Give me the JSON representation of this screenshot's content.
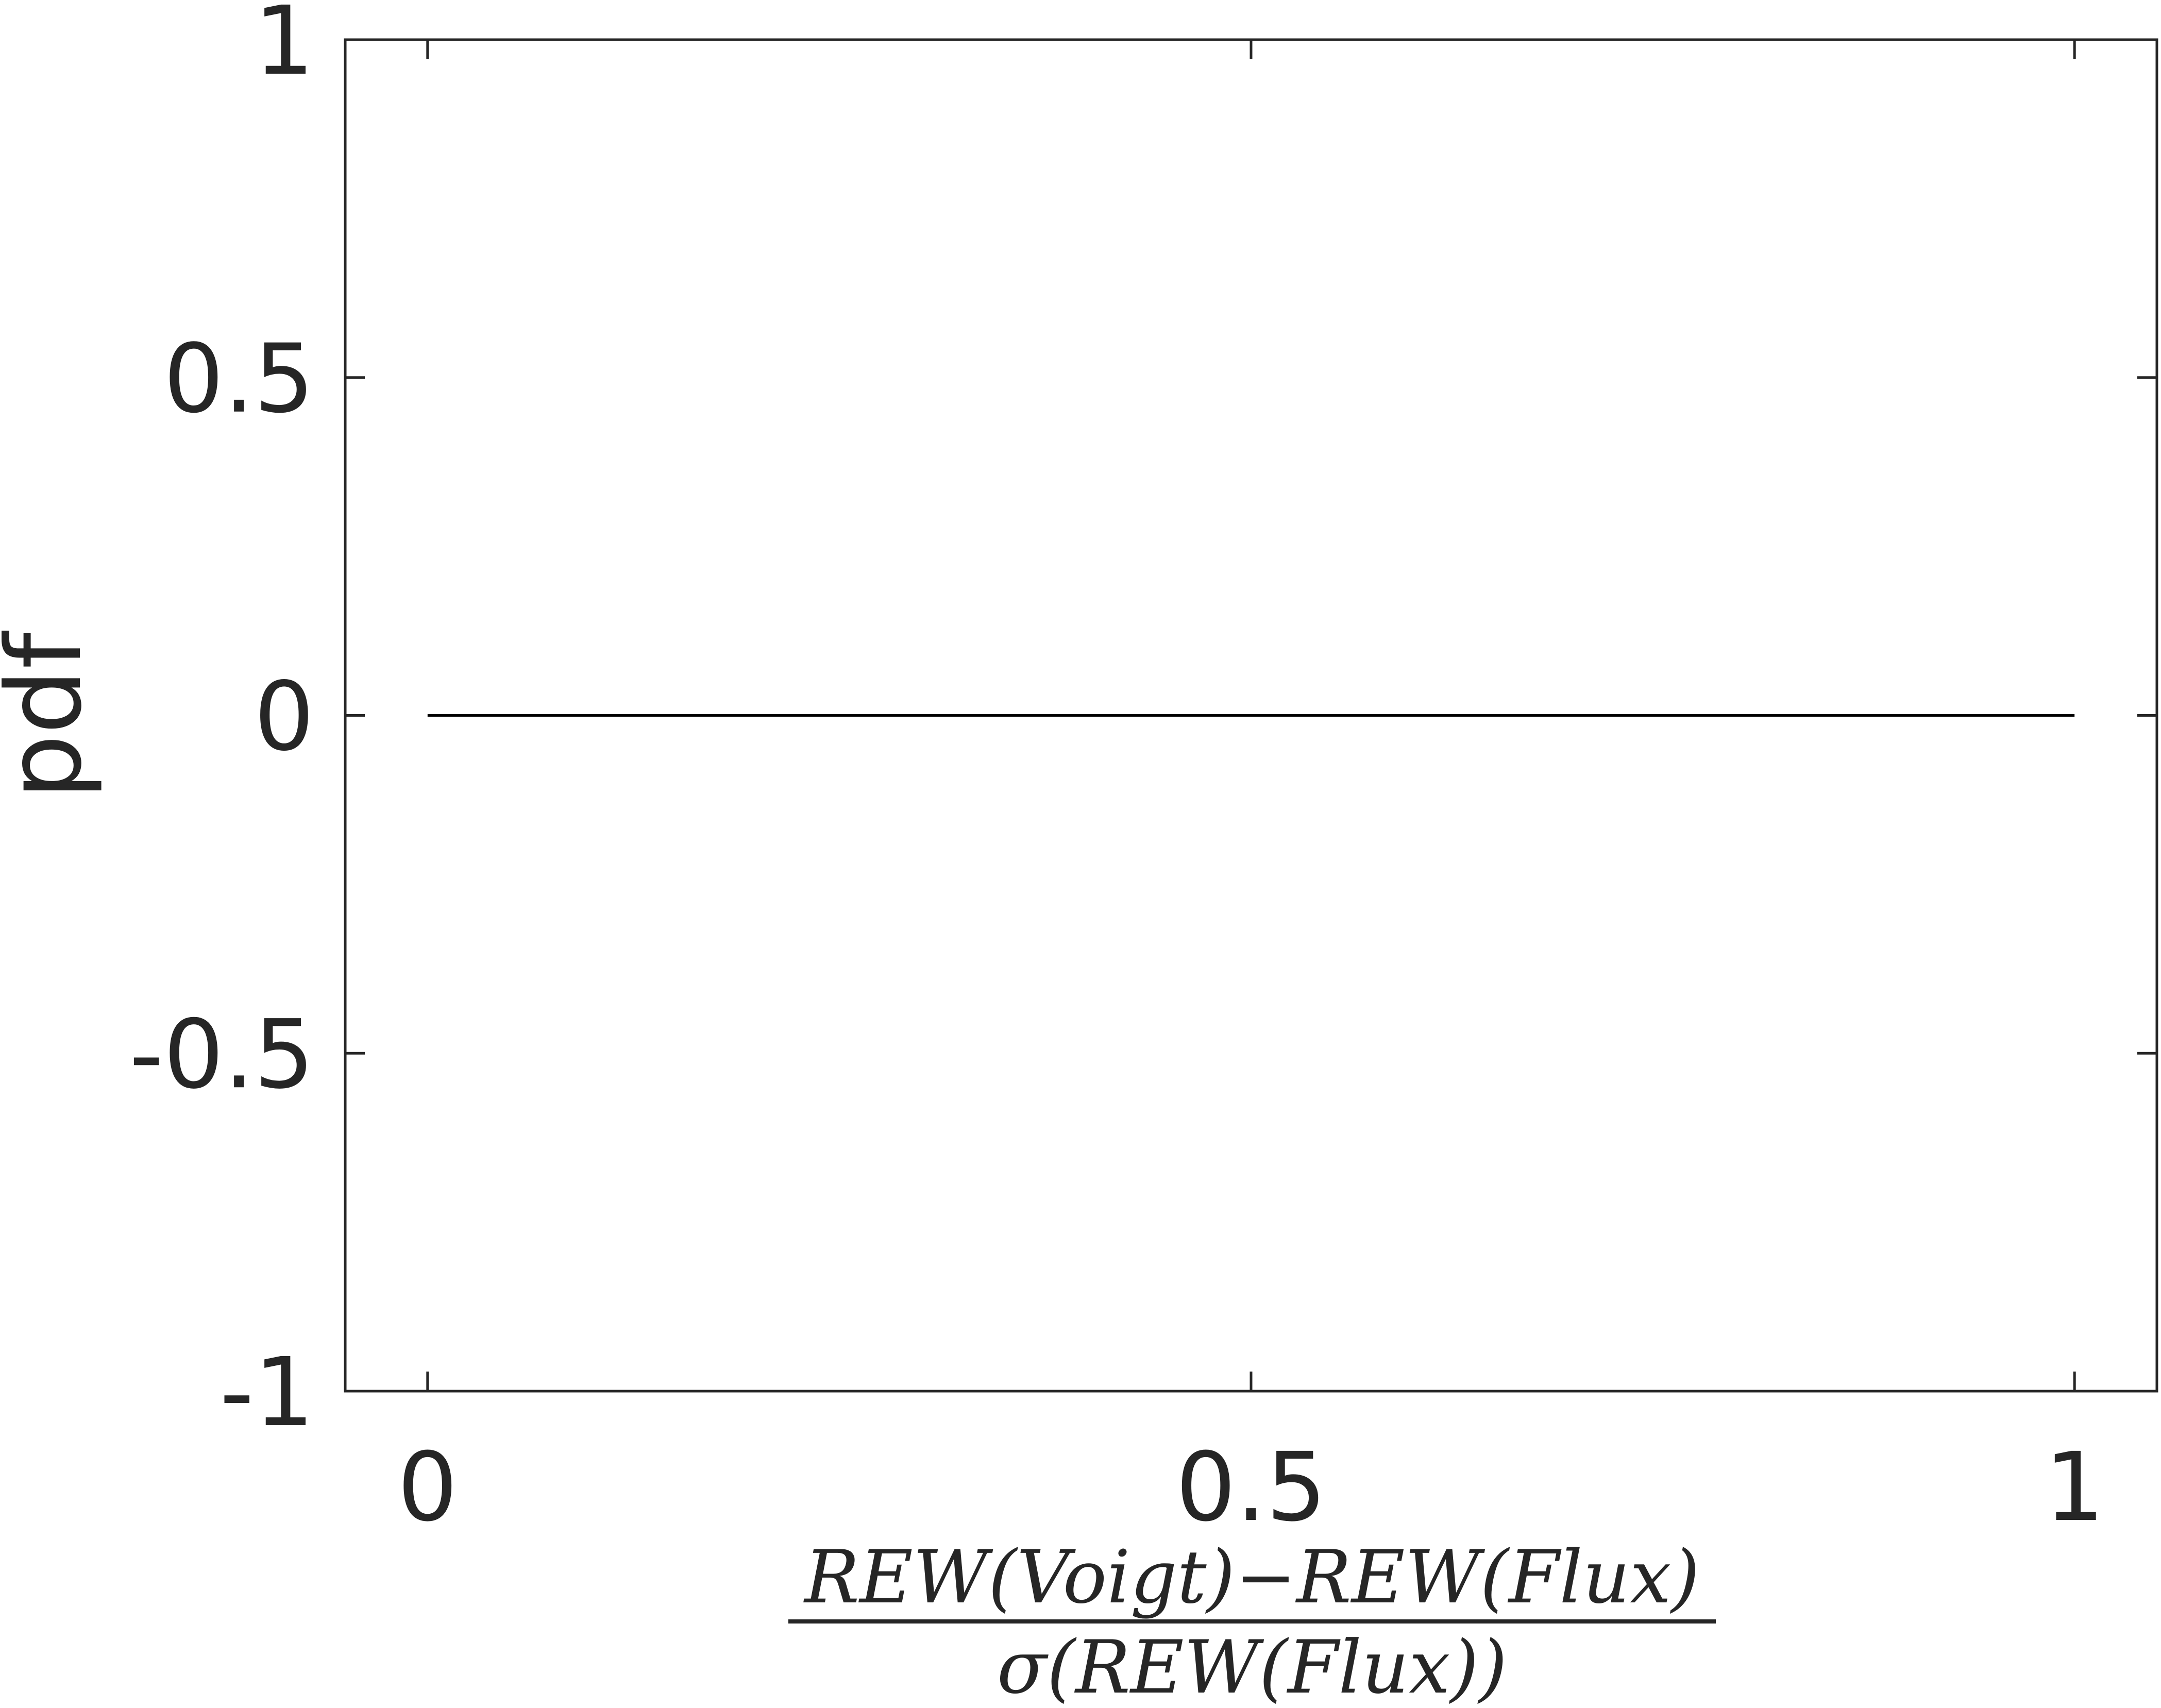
{
  "chart_data": {
    "type": "line",
    "title": "",
    "xlabel": {
      "numerator": "REW(Voigt)−REW(Flux)",
      "denominator": "σ(REW(Flux))"
    },
    "ylabel": "pdf",
    "xlim": [
      -0.05,
      1.05
    ],
    "ylim": [
      -1,
      1
    ],
    "xticks": [
      0,
      0.5,
      1
    ],
    "xtick_labels": [
      "0",
      "0.5",
      "1"
    ],
    "yticks": [
      -1,
      -0.5,
      0,
      0.5,
      1
    ],
    "ytick_labels": [
      "-1",
      "-0.5",
      "0",
      "0.5",
      "1"
    ],
    "grid": false,
    "series": [
      {
        "x": [
          0,
          1
        ],
        "y": [
          0,
          0
        ]
      }
    ],
    "colors": {
      "line": "#000000",
      "axes": "#262626",
      "text": "#262626"
    }
  }
}
